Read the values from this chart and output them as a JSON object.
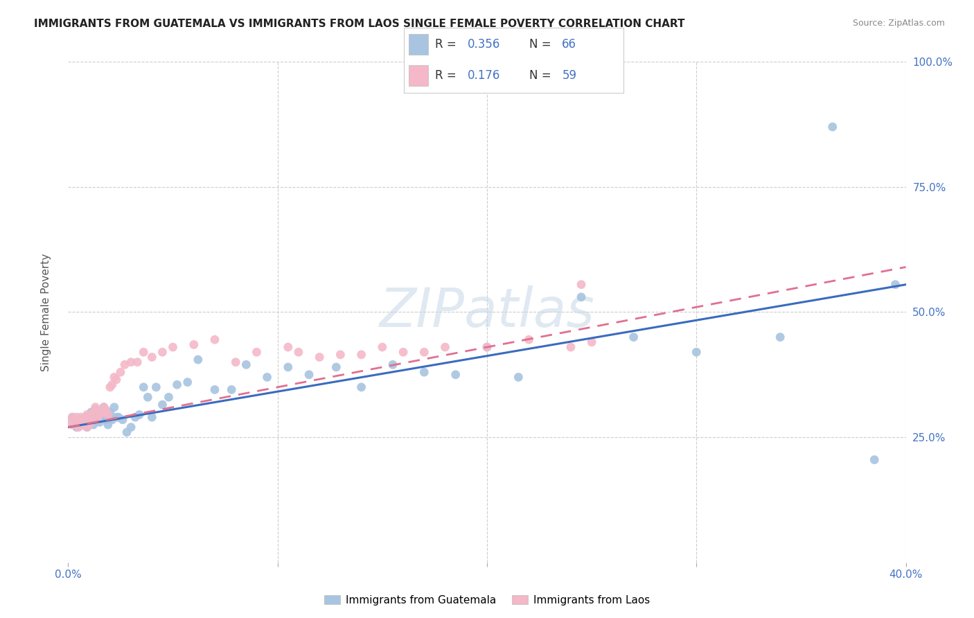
{
  "title": "IMMIGRANTS FROM GUATEMALA VS IMMIGRANTS FROM LAOS SINGLE FEMALE POVERTY CORRELATION CHART",
  "source": "Source: ZipAtlas.com",
  "ylabel": "Single Female Poverty",
  "xlim": [
    0.0,
    0.4
  ],
  "ylim": [
    0.0,
    1.0
  ],
  "guatemala_color": "#a8c4e0",
  "laos_color": "#f4b8c8",
  "guatemala_line_color": "#3a6bbf",
  "laos_line_color": "#e07090",
  "legend_r_guatemala": "0.356",
  "legend_n_guatemala": "66",
  "legend_r_laos": "0.176",
  "legend_n_laos": "59",
  "watermark_text": "ZIPatlas",
  "background_color": "#ffffff",
  "guatemala_x": [
    0.002,
    0.003,
    0.004,
    0.005,
    0.006,
    0.006,
    0.007,
    0.007,
    0.008,
    0.008,
    0.009,
    0.009,
    0.01,
    0.01,
    0.011,
    0.011,
    0.012,
    0.012,
    0.013,
    0.013,
    0.014,
    0.015,
    0.015,
    0.016,
    0.017,
    0.018,
    0.019,
    0.02,
    0.021,
    0.022,
    0.023,
    0.024,
    0.026,
    0.028,
    0.03,
    0.032,
    0.034,
    0.036,
    0.038,
    0.04,
    0.042,
    0.045,
    0.048,
    0.052,
    0.057,
    0.062,
    0.07,
    0.078,
    0.085,
    0.095,
    0.105,
    0.115,
    0.128,
    0.14,
    0.155,
    0.17,
    0.185,
    0.2,
    0.215,
    0.245,
    0.27,
    0.3,
    0.34,
    0.365,
    0.385,
    0.395
  ],
  "guatemala_y": [
    0.29,
    0.285,
    0.27,
    0.285,
    0.28,
    0.285,
    0.28,
    0.275,
    0.28,
    0.29,
    0.275,
    0.27,
    0.29,
    0.285,
    0.295,
    0.3,
    0.285,
    0.275,
    0.295,
    0.305,
    0.285,
    0.3,
    0.28,
    0.29,
    0.31,
    0.285,
    0.275,
    0.3,
    0.285,
    0.31,
    0.29,
    0.29,
    0.285,
    0.26,
    0.27,
    0.29,
    0.295,
    0.35,
    0.33,
    0.29,
    0.35,
    0.315,
    0.33,
    0.355,
    0.36,
    0.405,
    0.345,
    0.345,
    0.395,
    0.37,
    0.39,
    0.375,
    0.39,
    0.35,
    0.395,
    0.38,
    0.375,
    0.43,
    0.37,
    0.53,
    0.45,
    0.42,
    0.45,
    0.87,
    0.205,
    0.555
  ],
  "laos_x": [
    0.001,
    0.002,
    0.002,
    0.003,
    0.003,
    0.004,
    0.004,
    0.005,
    0.005,
    0.006,
    0.006,
    0.007,
    0.007,
    0.008,
    0.008,
    0.009,
    0.009,
    0.01,
    0.01,
    0.011,
    0.011,
    0.012,
    0.013,
    0.014,
    0.015,
    0.016,
    0.017,
    0.018,
    0.019,
    0.02,
    0.021,
    0.022,
    0.023,
    0.025,
    0.027,
    0.03,
    0.033,
    0.036,
    0.04,
    0.045,
    0.05,
    0.06,
    0.07,
    0.08,
    0.09,
    0.105,
    0.12,
    0.14,
    0.16,
    0.18,
    0.2,
    0.22,
    0.24,
    0.11,
    0.13,
    0.15,
    0.17,
    0.245,
    0.25
  ],
  "laos_y": [
    0.28,
    0.275,
    0.29,
    0.275,
    0.28,
    0.285,
    0.29,
    0.27,
    0.285,
    0.275,
    0.29,
    0.28,
    0.275,
    0.285,
    0.28,
    0.27,
    0.295,
    0.28,
    0.275,
    0.285,
    0.295,
    0.3,
    0.31,
    0.285,
    0.295,
    0.3,
    0.31,
    0.305,
    0.295,
    0.35,
    0.355,
    0.37,
    0.365,
    0.38,
    0.395,
    0.4,
    0.4,
    0.42,
    0.41,
    0.42,
    0.43,
    0.435,
    0.445,
    0.4,
    0.42,
    0.43,
    0.41,
    0.415,
    0.42,
    0.43,
    0.43,
    0.445,
    0.43,
    0.42,
    0.415,
    0.43,
    0.42,
    0.555,
    0.44
  ],
  "guat_trend_x": [
    0.0,
    0.4
  ],
  "guat_trend_y": [
    0.27,
    0.555
  ],
  "laos_trend_x": [
    0.0,
    0.2
  ],
  "laos_trend_y": [
    0.27,
    0.43
  ]
}
